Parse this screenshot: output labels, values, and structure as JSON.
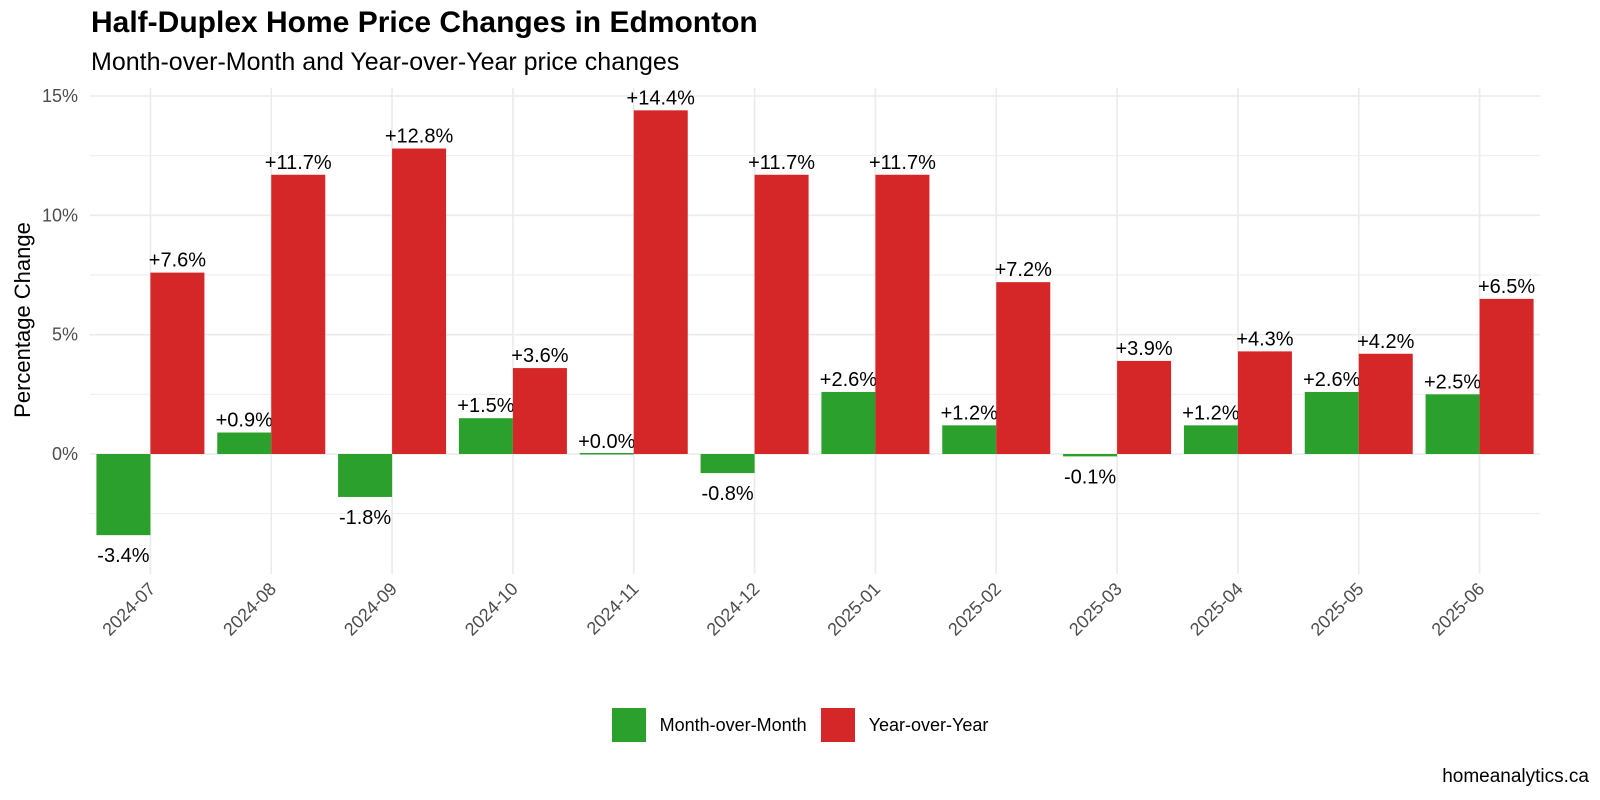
{
  "title": "Half-Duplex Home Price Changes in Edmonton",
  "subtitle": "Month-over-Month and Year-over-Year price changes",
  "caption": "homeanalytics.ca",
  "chart_data": {
    "type": "bar",
    "title": "Half-Duplex Home Price Changes in Edmonton",
    "subtitle": "Month-over-Month and Year-over-Year price changes",
    "xlabel": "",
    "ylabel": "Percentage Change",
    "ylim": [
      -3.8,
      15
    ],
    "yticks": [
      0,
      5,
      10,
      15
    ],
    "ytick_labels": [
      "0%",
      "5%",
      "10%",
      "15%"
    ],
    "grid": true,
    "legend_position": "bottom",
    "categories": [
      "2024-07",
      "2024-08",
      "2024-09",
      "2024-10",
      "2024-11",
      "2024-12",
      "2025-01",
      "2025-02",
      "2025-03",
      "2025-04",
      "2025-05",
      "2025-06"
    ],
    "series": [
      {
        "name": "Month-over-Month",
        "color": "#2ca02c",
        "values": [
          -3.4,
          0.9,
          -1.8,
          1.5,
          0.0,
          -0.8,
          2.6,
          1.2,
          -0.1,
          1.2,
          2.6,
          2.5
        ],
        "labels": [
          "-3.4%",
          "+0.9%",
          "-1.8%",
          "+1.5%",
          "+0.0%",
          "-0.8%",
          "+2.6%",
          "+1.2%",
          "-0.1%",
          "+1.2%",
          "+2.6%",
          "+2.5%"
        ]
      },
      {
        "name": "Year-over-Year",
        "color": "#d62728",
        "values": [
          7.6,
          11.7,
          12.8,
          3.6,
          14.4,
          11.7,
          11.7,
          7.2,
          3.9,
          4.3,
          4.2,
          6.5
        ],
        "labels": [
          "+7.6%",
          "+11.7%",
          "+12.8%",
          "+3.6%",
          "+14.4%",
          "+11.7%",
          "+11.7%",
          "+7.2%",
          "+3.9%",
          "+4.3%",
          "+4.2%",
          "+6.5%"
        ]
      }
    ]
  }
}
